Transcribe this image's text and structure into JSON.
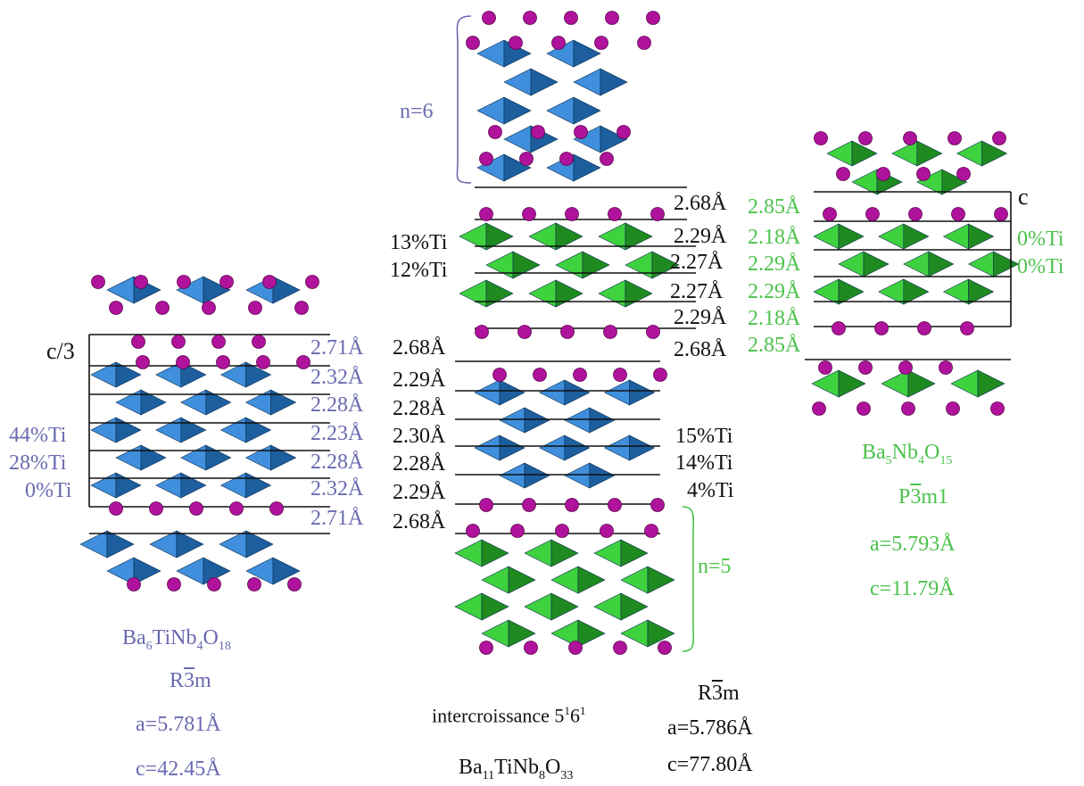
{
  "colors": {
    "blue_poly": "#3f8fdc",
    "blue_poly_dark": "#1c5e9e",
    "green_poly": "#3fd23f",
    "green_poly_dark": "#1f8a1f",
    "atom": "#b0139b",
    "blue_text": "#6a6ab0",
    "green_text": "#4cc24c"
  },
  "left": {
    "axis_label": "c/3",
    "distances": [
      "2.71Å",
      "2.32Å",
      "2.28Å",
      "2.23Å",
      "2.28Å",
      "2.32Å",
      "2.71Å"
    ],
    "ti_labels": [
      "44%Ti",
      "28%Ti",
      "0%Ti"
    ],
    "formula": {
      "a": "Ba",
      "s1": "6",
      "b": "TiNb",
      "s2": "4",
      "c": "O",
      "s3": "18"
    },
    "space_group": {
      "pre": "R",
      "bar": "3",
      "post": "m"
    },
    "a": "a=5.781Å",
    "c": "c=42.45Å"
  },
  "middle": {
    "n_top": "n=6",
    "n_bottom": "n=5",
    "distances_right_top": [
      "2.68Å",
      "2.29Å",
      "2.27Å",
      "2.27Å",
      "2.29Å",
      "2.68Å"
    ],
    "ti_labels_top": [
      "13%Ti",
      "12%Ti"
    ],
    "distances_left": [
      "2.68Å",
      "2.29Å",
      "2.28Å",
      "2.30Å",
      "2.28Å",
      "2.29Å",
      "2.68Å"
    ],
    "ti_labels_bottom": [
      "15%Ti",
      "14%Ti",
      "4%Ti"
    ],
    "intergrowth": {
      "text": "intercroissance 5",
      "s1": "1",
      "mid": "6",
      "s2": "1"
    },
    "formula": {
      "a": "Ba",
      "s1": "11",
      "b": "TiNb",
      "s2": "8",
      "c": "O",
      "s3": "33"
    },
    "space_group": {
      "pre": "R",
      "bar": "3",
      "post": "m"
    },
    "a": "a=5.786Å",
    "c": "c=77.80Å"
  },
  "right": {
    "axis_label": "c",
    "distances": [
      "2.85Å",
      "2.18Å",
      "2.29Å",
      "2.29Å",
      "2.18Å",
      "2.85Å"
    ],
    "ti_labels": [
      "0%Ti",
      "0%Ti"
    ],
    "formula": {
      "a": "Ba",
      "s1": "5",
      "b": "Nb",
      "s2": "4",
      "c": "O",
      "s3": "15"
    },
    "space_group": {
      "pre": "P",
      "bar": "3",
      "post": "m1"
    },
    "a": "a=5.793Å",
    "c": "c=11.79Å"
  }
}
